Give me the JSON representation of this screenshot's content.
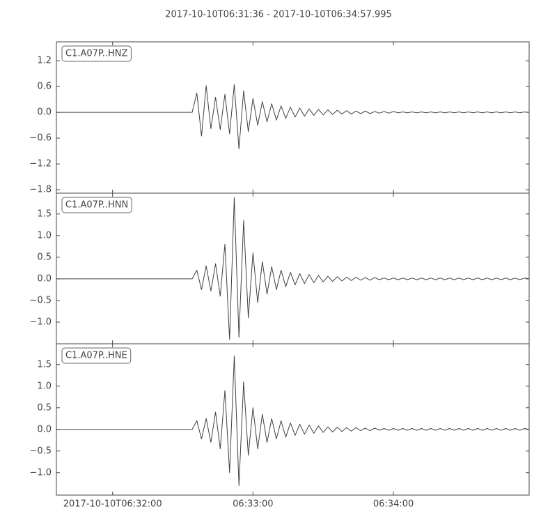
{
  "title": "2017-10-10T06:31:36  -  2017-10-10T06:34:57.995",
  "chart_data": [
    {
      "type": "line",
      "title": "C1.A07P..HNZ",
      "color": "#404040",
      "x": [
        0,
        58,
        60,
        62,
        64,
        66,
        68,
        70,
        72,
        74,
        76,
        78,
        80,
        82,
        84,
        86,
        88,
        90,
        92,
        94,
        96,
        98,
        100,
        102,
        104,
        106,
        108,
        110,
        112,
        114,
        116,
        118,
        120,
        122,
        124,
        126,
        128,
        130,
        132,
        134,
        136,
        138,
        140,
        142,
        144,
        146,
        148,
        150,
        152,
        154,
        156,
        158,
        160,
        162,
        164,
        166,
        168,
        170,
        172,
        174,
        176,
        178,
        180,
        182,
        184,
        186,
        188,
        190,
        192,
        194,
        196,
        198,
        200,
        201.995
      ],
      "values": [
        0,
        0,
        0.45,
        -0.55,
        0.62,
        -0.38,
        0.35,
        -0.4,
        0.42,
        -0.5,
        0.65,
        -0.85,
        0.5,
        -0.45,
        0.32,
        -0.3,
        0.25,
        -0.22,
        0.2,
        -0.18,
        0.15,
        -0.14,
        0.12,
        -0.11,
        0.1,
        -0.09,
        0.08,
        -0.07,
        0.07,
        -0.06,
        0.06,
        -0.05,
        0.05,
        -0.04,
        0.04,
        -0.04,
        0.03,
        -0.03,
        0.03,
        -0.03,
        0.02,
        -0.02,
        0.02,
        -0.02,
        0.02,
        -0.01,
        0.01,
        -0.01,
        0.01,
        -0.01,
        0.01,
        -0.01,
        0.01,
        -0.01,
        0.01,
        -0.01,
        0.01,
        -0.01,
        0.01,
        -0.01,
        0.01,
        -0.01,
        0.01,
        -0.01,
        0.01,
        -0.01,
        0.01,
        -0.01,
        0.01,
        -0.01,
        0.01,
        -0.01,
        0.01,
        0
      ],
      "xlim": [
        0,
        201.995
      ],
      "ylim": [
        -1.88,
        1.64
      ],
      "yticks": [
        {
          "value": -1.8,
          "label": "−1.8"
        },
        {
          "value": -1.2,
          "label": "−1.2"
        },
        {
          "value": -0.6,
          "label": "−0.6"
        },
        {
          "value": 0,
          "label": "0.0"
        },
        0.6,
        1.2
      ]
    },
    {
      "type": "line",
      "title": "C1.A07P..HNN",
      "color": "#404040",
      "x": [
        0,
        58,
        60,
        62,
        64,
        66,
        68,
        70,
        72,
        74,
        76,
        78,
        80,
        82,
        84,
        86,
        88,
        90,
        92,
        94,
        96,
        98,
        100,
        102,
        104,
        106,
        108,
        110,
        112,
        114,
        116,
        118,
        120,
        122,
        124,
        126,
        128,
        130,
        132,
        134,
        136,
        138,
        140,
        142,
        144,
        146,
        148,
        150,
        152,
        154,
        156,
        158,
        160,
        162,
        164,
        166,
        168,
        170,
        172,
        174,
        176,
        178,
        180,
        182,
        184,
        186,
        188,
        190,
        192,
        194,
        196,
        198,
        200,
        201.995
      ],
      "values": [
        0,
        0,
        0.2,
        -0.25,
        0.3,
        -0.28,
        0.35,
        -0.4,
        0.8,
        -1.4,
        1.88,
        -1.35,
        1.35,
        -0.9,
        0.6,
        -0.55,
        0.4,
        -0.35,
        0.28,
        -0.25,
        0.2,
        -0.18,
        0.15,
        -0.14,
        0.12,
        -0.11,
        0.1,
        -0.09,
        0.08,
        -0.07,
        0.06,
        -0.06,
        0.05,
        -0.05,
        0.04,
        -0.04,
        0.04,
        -0.03,
        0.03,
        -0.03,
        0.03,
        -0.02,
        0.02,
        -0.02,
        0.02,
        -0.02,
        0.02,
        -0.02,
        0.02,
        -0.02,
        0.02,
        -0.02,
        0.02,
        -0.02,
        0.02,
        -0.02,
        0.02,
        -0.02,
        0.02,
        -0.02,
        0.02,
        -0.02,
        0.02,
        -0.02,
        0.02,
        -0.02,
        0.02,
        -0.02,
        0.02,
        -0.02,
        0.02,
        -0.02,
        0.02,
        0
      ],
      "xlim": [
        0,
        201.995
      ],
      "ylim": [
        -1.5,
        1.98
      ],
      "yticks": [
        {
          "value": -1.0,
          "label": "−1.0"
        },
        {
          "value": -0.5,
          "label": "−0.5"
        },
        {
          "value": 0,
          "label": "0.0"
        },
        0.5,
        {
          "value": 1.0,
          "label": "1.0"
        },
        1.5
      ]
    },
    {
      "type": "line",
      "title": "C1.A07P..HNE",
      "color": "#404040",
      "x": [
        0,
        58,
        60,
        62,
        64,
        66,
        68,
        70,
        72,
        74,
        76,
        78,
        80,
        82,
        84,
        86,
        88,
        90,
        92,
        94,
        96,
        98,
        100,
        102,
        104,
        106,
        108,
        110,
        112,
        114,
        116,
        118,
        120,
        122,
        124,
        126,
        128,
        130,
        132,
        134,
        136,
        138,
        140,
        142,
        144,
        146,
        148,
        150,
        152,
        154,
        156,
        158,
        160,
        162,
        164,
        166,
        168,
        170,
        172,
        174,
        176,
        178,
        180,
        182,
        184,
        186,
        188,
        190,
        192,
        194,
        196,
        198,
        200,
        201.995
      ],
      "values": [
        0,
        0,
        0.2,
        -0.22,
        0.25,
        -0.3,
        0.4,
        -0.45,
        0.9,
        -1.0,
        1.7,
        -1.3,
        1.1,
        -0.6,
        0.5,
        -0.45,
        0.35,
        -0.3,
        0.25,
        -0.22,
        0.2,
        -0.18,
        0.15,
        -0.14,
        0.12,
        -0.11,
        0.1,
        -0.09,
        0.08,
        -0.07,
        0.06,
        -0.06,
        0.05,
        -0.05,
        0.04,
        -0.04,
        0.04,
        -0.03,
        0.03,
        -0.03,
        0.03,
        -0.02,
        0.02,
        -0.02,
        0.02,
        -0.02,
        0.02,
        -0.02,
        0.02,
        -0.02,
        0.02,
        -0.02,
        0.02,
        -0.02,
        0.02,
        -0.02,
        0.02,
        -0.02,
        0.02,
        -0.02,
        0.02,
        -0.02,
        0.02,
        -0.02,
        0.02,
        -0.02,
        0.02,
        -0.02,
        0.02,
        -0.02,
        0.02,
        -0.02,
        0.02,
        0
      ],
      "xlim": [
        0,
        201.995
      ],
      "ylim": [
        -1.52,
        1.98
      ],
      "yticks": [
        {
          "value": -1.0,
          "label": "−1.0"
        },
        {
          "value": -0.5,
          "label": "−0.5"
        },
        {
          "value": 0,
          "label": "0.0"
        },
        0.5,
        {
          "value": 1.0,
          "label": "1.0"
        },
        1.5
      ],
      "xticks": [
        {
          "value": 24,
          "label": "2017-10-10T06:32:00"
        },
        {
          "value": 84,
          "label": "06:33:00"
        },
        {
          "value": 144,
          "label": "06:34:00"
        }
      ]
    }
  ]
}
